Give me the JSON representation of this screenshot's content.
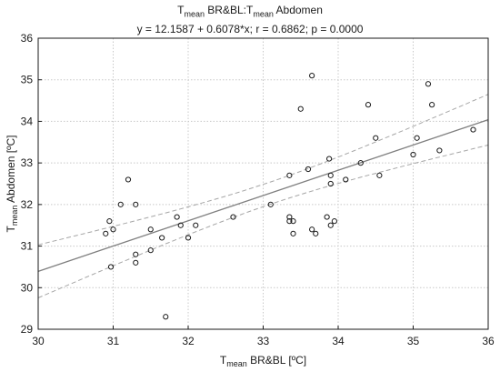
{
  "chart_data": {
    "type": "scatter",
    "title": {
      "main": "T",
      "main_sub": "mean",
      "main_mid": " BR&BL:T",
      "main_sub2": "mean",
      "main_end": " Abdomen",
      "subtitle": "y = 12.1587 + 0.6078*x;  r = 0.6862; p = 0.0000"
    },
    "xlabel": {
      "base": "T",
      "sub": "mean",
      "rest": " BR&BL  [ºC]"
    },
    "ylabel": {
      "base": "T",
      "sub": "mean",
      "rest": " Abdomen  [ºC]"
    },
    "xlim": [
      30,
      36
    ],
    "ylim": [
      29,
      36
    ],
    "xticks": [
      "30",
      "31",
      "32",
      "33",
      "34",
      "35",
      "36"
    ],
    "yticks": [
      "29",
      "30",
      "31",
      "32",
      "33",
      "34",
      "35",
      "36"
    ],
    "grid": "dashed",
    "regression": {
      "intercept": 12.1587,
      "slope": 0.6078,
      "confidence_band": 0.95
    },
    "points": [
      {
        "x": 30.9,
        "y": 31.3
      },
      {
        "x": 30.95,
        "y": 31.6
      },
      {
        "x": 31.0,
        "y": 31.4
      },
      {
        "x": 30.97,
        "y": 30.5
      },
      {
        "x": 31.1,
        "y": 32.0
      },
      {
        "x": 31.2,
        "y": 32.6
      },
      {
        "x": 31.3,
        "y": 32.0
      },
      {
        "x": 31.3,
        "y": 30.8
      },
      {
        "x": 31.3,
        "y": 30.6
      },
      {
        "x": 31.5,
        "y": 31.4
      },
      {
        "x": 31.5,
        "y": 30.9
      },
      {
        "x": 31.65,
        "y": 31.2
      },
      {
        "x": 31.7,
        "y": 29.3
      },
      {
        "x": 31.85,
        "y": 31.7
      },
      {
        "x": 31.9,
        "y": 31.5
      },
      {
        "x": 32.0,
        "y": 31.2
      },
      {
        "x": 32.1,
        "y": 31.5
      },
      {
        "x": 32.6,
        "y": 31.7
      },
      {
        "x": 33.1,
        "y": 32.0
      },
      {
        "x": 33.35,
        "y": 32.7
      },
      {
        "x": 33.35,
        "y": 31.7
      },
      {
        "x": 33.35,
        "y": 31.6
      },
      {
        "x": 33.4,
        "y": 31.6
      },
      {
        "x": 33.4,
        "y": 31.3
      },
      {
        "x": 33.5,
        "y": 34.3
      },
      {
        "x": 33.6,
        "y": 32.85
      },
      {
        "x": 33.65,
        "y": 35.1
      },
      {
        "x": 33.65,
        "y": 31.4
      },
      {
        "x": 33.7,
        "y": 31.3
      },
      {
        "x": 33.85,
        "y": 31.7
      },
      {
        "x": 33.88,
        "y": 33.1
      },
      {
        "x": 33.9,
        "y": 32.7
      },
      {
        "x": 33.9,
        "y": 32.5
      },
      {
        "x": 33.9,
        "y": 31.5
      },
      {
        "x": 33.95,
        "y": 31.6
      },
      {
        "x": 34.1,
        "y": 32.6
      },
      {
        "x": 34.3,
        "y": 33.0
      },
      {
        "x": 34.4,
        "y": 34.4
      },
      {
        "x": 34.5,
        "y": 33.6
      },
      {
        "x": 34.55,
        "y": 32.7
      },
      {
        "x": 35.0,
        "y": 33.2
      },
      {
        "x": 35.05,
        "y": 33.6
      },
      {
        "x": 35.2,
        "y": 34.9
      },
      {
        "x": 35.25,
        "y": 34.4
      },
      {
        "x": 35.35,
        "y": 33.3
      },
      {
        "x": 35.8,
        "y": 33.8
      }
    ],
    "colors": {
      "fit_line": "#7f7f7f",
      "band": "#a6a6a6",
      "grid": "#c8c8c8",
      "marker": "#1a1a1a"
    }
  }
}
